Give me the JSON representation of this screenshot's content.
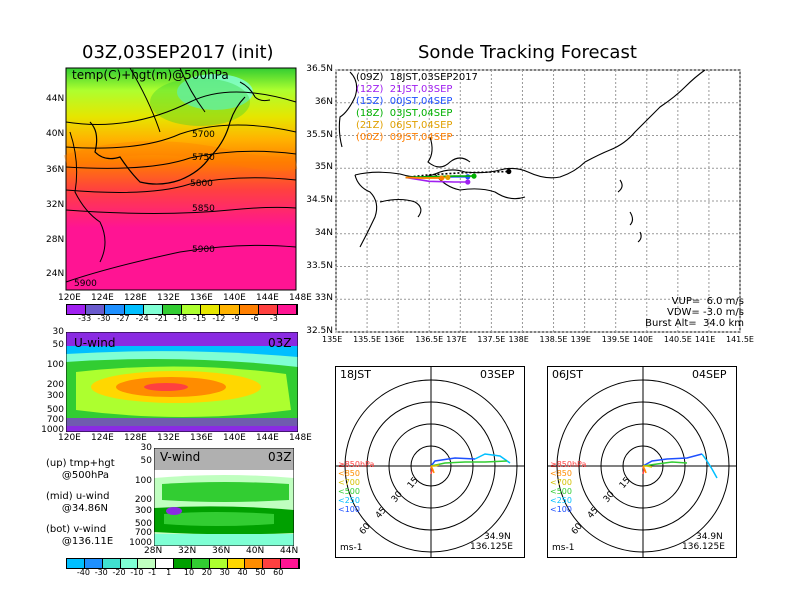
{
  "left": {
    "title": "03Z,03SEP2017 (init)",
    "map_panel": {
      "label": "temp(C)+hgt(m)@500hPa",
      "contour_labels": [
        "5700",
        "5750",
        "5800",
        "5850",
        "5900",
        "5900"
      ],
      "lat_ticks": [
        "44N",
        "40N",
        "36N",
        "32N",
        "28N",
        "24N"
      ],
      "lon_ticks": [
        "120E",
        "124E",
        "128E",
        "132E",
        "136E",
        "140E",
        "144E",
        "148E"
      ],
      "colorbar_labels": [
        "-33",
        "-30",
        "-27",
        "-24",
        "-21",
        "-18",
        "-15",
        "-12",
        "-9",
        "-6",
        "-3"
      ],
      "colorbar_colors": [
        "#a020f0",
        "#6a5acd",
        "#1e90ff",
        "#00bfff",
        "#7fffd4",
        "#32cd32",
        "#adff2f",
        "#e6e600",
        "#ffb300",
        "#ff7f00",
        "#ff4040",
        "#ff1493"
      ]
    },
    "u_panel": {
      "label": "U-wind",
      "time": "03Z",
      "p_ticks": [
        "30",
        "50",
        "100",
        "200",
        "300",
        "500",
        "700",
        "1000"
      ],
      "lon_ticks": [
        "120E",
        "124E",
        "128E",
        "132E",
        "136E",
        "140E",
        "144E",
        "148E"
      ]
    },
    "v_panel": {
      "label": "V-wind",
      "time": "03Z",
      "p_ticks": [
        "30",
        "50",
        "100",
        "200",
        "300",
        "500",
        "700",
        "1000"
      ],
      "lat_ticks": [
        "28N",
        "32N",
        "36N",
        "40N",
        "44N"
      ]
    },
    "wind_colorbar": {
      "labels": [
        "-40",
        "-30",
        "-20",
        "-10",
        "-1",
        "1",
        "10",
        "20",
        "30",
        "40",
        "50",
        "60"
      ],
      "colors": [
        "#00bfff",
        "#1e90ff",
        "#40e0d0",
        "#7fffd4",
        "#c0ffc0",
        "#ffffff",
        "#00a000",
        "#32cd32",
        "#adff2f",
        "#ffd700",
        "#ff8c00",
        "#ff4040",
        "#ff1493"
      ]
    },
    "notes": [
      "(up) tmp+hgt",
      "     @500hPa",
      "(mid) u-wind",
      "     @34.86N",
      "(bot) v-wind",
      "     @136.11E"
    ]
  },
  "right": {
    "title": "Sonde Tracking Forecast",
    "legend": [
      {
        "label": "(09Z)  18JST,03SEP2017",
        "color": "#000000"
      },
      {
        "label": "(12Z)  21JST,03SEP",
        "color": "#a020f0"
      },
      {
        "label": "(15Z)  00JST,04SEP",
        "color": "#1e50ff"
      },
      {
        "label": "(18Z)  03JST,04SEP",
        "color": "#00b000"
      },
      {
        "label": "(21Z)  06JST,04SEP",
        "color": "#e0a000"
      },
      {
        "label": "(00Z)  09JST,04SEP",
        "color": "#ff7f00"
      }
    ],
    "info": [
      "VUP=  6.0 m/s",
      "VDW= -3.0 m/s",
      "Burst Alt=  34.0 km"
    ]
  },
  "polar_left": {
    "time": "18JST",
    "date": "03SEP",
    "lat": "34.9N",
    "lon": "136.125E",
    "unit": "ms-1"
  },
  "polar_right": {
    "time": "06JST",
    "date": "04SEP",
    "lat": "34.9N",
    "lon": "136.125E",
    "unit": "ms-1"
  },
  "polar_legend": {
    "items": [
      {
        "label": "≥850hPa",
        "color": "#ff4040"
      },
      {
        "label": "<850",
        "color": "#ff8c00"
      },
      {
        "label": "<700",
        "color": "#d4c000"
      },
      {
        "label": "<500",
        "color": "#32cd32"
      },
      {
        "label": "<250",
        "color": "#00bfff"
      },
      {
        "label": "<100",
        "color": "#1e50ff"
      }
    ],
    "ring_labels": [
      "15",
      "30",
      "45",
      "60"
    ]
  },
  "chart_data": {
    "type": "line",
    "title": "Sonde Tracking Forecast",
    "xlim": [
      135.0,
      141.5
    ],
    "ylim": [
      32.5,
      36.5
    ],
    "x_ticks": [
      "135E",
      "135.5E",
      "136E",
      "136.5E",
      "137E",
      "137.5E",
      "138E",
      "138.5E",
      "139E",
      "139.5E",
      "140E",
      "140.5E",
      "141E",
      "141.5E"
    ],
    "y_ticks": [
      "32.5N",
      "33N",
      "33.5N",
      "34N",
      "34.5N",
      "35N",
      "35.5N",
      "36N",
      "36.5N"
    ],
    "grid": true,
    "legend_position": "top-left",
    "series": [
      {
        "name": "(09Z)  18JST,03SEP2017",
        "color": "#000000",
        "points": [
          [
            136.12,
            34.86
          ],
          [
            136.5,
            34.9
          ],
          [
            137.0,
            34.93
          ],
          [
            137.4,
            34.94
          ],
          [
            137.78,
            34.95
          ]
        ]
      },
      {
        "name": "(12Z)  21JST,03SEP",
        "color": "#a020f0",
        "points": [
          [
            136.12,
            34.86
          ],
          [
            136.5,
            34.8
          ],
          [
            136.9,
            34.79
          ],
          [
            137.12,
            34.79
          ]
        ]
      },
      {
        "name": "(15Z)  00JST,04SEP",
        "color": "#1e50ff",
        "points": [
          [
            136.12,
            34.86
          ],
          [
            136.5,
            34.86
          ],
          [
            136.9,
            34.87
          ],
          [
            137.12,
            34.87
          ]
        ]
      },
      {
        "name": "(18Z)  03JST,04SEP",
        "color": "#00b000",
        "points": [
          [
            136.12,
            34.86
          ],
          [
            136.5,
            34.87
          ],
          [
            136.9,
            34.88
          ],
          [
            137.22,
            34.88
          ]
        ]
      },
      {
        "name": "(21Z)  06JST,04SEP",
        "color": "#e0a000",
        "points": [
          [
            136.12,
            34.86
          ],
          [
            136.4,
            34.85
          ],
          [
            136.8,
            34.86
          ]
        ]
      },
      {
        "name": "(00Z)  09JST,04SEP",
        "color": "#ff7f00",
        "points": [
          [
            136.12,
            34.86
          ],
          [
            136.4,
            34.85
          ],
          [
            136.7,
            34.85
          ]
        ]
      }
    ]
  }
}
